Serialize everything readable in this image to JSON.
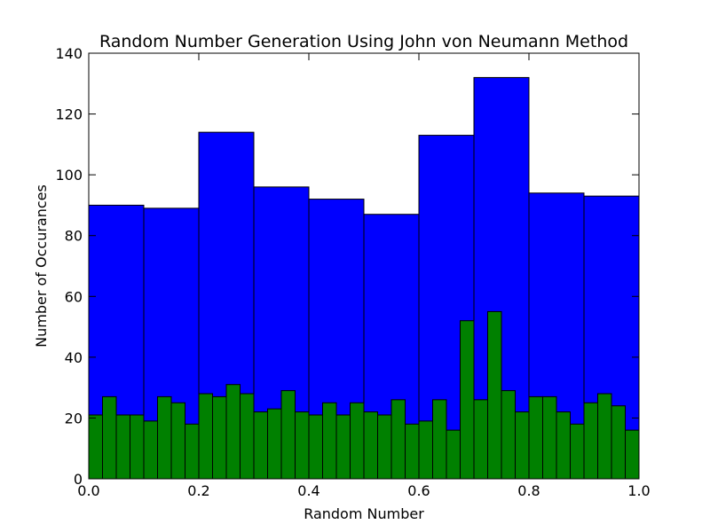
{
  "chart_data": {
    "type": "bar",
    "title": "Random Number Generation Using John von Neumann Method",
    "xlabel": "Random Number",
    "ylabel": "Number of Occurances",
    "xlim": [
      0.0,
      1.0
    ],
    "ylim": [
      0,
      140
    ],
    "grid": false,
    "x_ticks": [
      "0.0",
      "0.2",
      "0.4",
      "0.6",
      "0.8",
      "1.0"
    ],
    "y_ticks": [
      "0",
      "20",
      "40",
      "60",
      "80",
      "100",
      "120",
      "140"
    ],
    "series": [
      {
        "color": "#0000ff",
        "bin_edges": [
          0.0,
          0.1,
          0.2,
          0.3,
          0.4,
          0.5,
          0.6,
          0.7,
          0.8,
          0.9,
          1.0
        ],
        "values": [
          90,
          89,
          114,
          96,
          92,
          87,
          113,
          132,
          94,
          93
        ]
      },
      {
        "color": "#008000",
        "bin_edges": [
          0.0,
          0.025,
          0.05,
          0.075,
          0.1,
          0.125,
          0.15,
          0.175,
          0.2,
          0.225,
          0.25,
          0.275,
          0.3,
          0.325,
          0.35,
          0.375,
          0.4,
          0.425,
          0.45,
          0.475,
          0.5,
          0.525,
          0.55,
          0.575,
          0.6,
          0.625,
          0.65,
          0.675,
          0.7,
          0.725,
          0.75,
          0.775,
          0.8,
          0.825,
          0.85,
          0.875,
          0.9,
          0.925,
          0.95,
          0.975,
          1.0
        ],
        "values": [
          21,
          27,
          21,
          21,
          19,
          27,
          25,
          18,
          28,
          27,
          31,
          28,
          22,
          23,
          29,
          22,
          21,
          25,
          21,
          25,
          22,
          21,
          26,
          18,
          19,
          26,
          16,
          52,
          26,
          55,
          29,
          22,
          27,
          27,
          22,
          18,
          25,
          28,
          24,
          16
        ]
      }
    ]
  }
}
